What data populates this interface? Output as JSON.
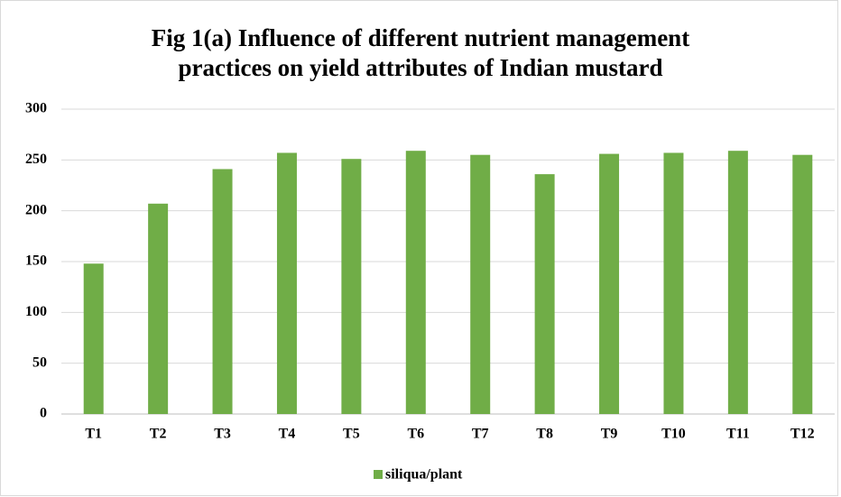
{
  "chart_data": {
    "type": "bar",
    "title": "Fig 1(a) Influence of different nutrient management practices on yield attributes of Indian mustard",
    "categories": [
      "T1",
      "T2",
      "T3",
      "T4",
      "T5",
      "T6",
      "T7",
      "T8",
      "T9",
      "T10",
      "T11",
      "T12"
    ],
    "series": [
      {
        "name": "siliqua/plant",
        "color": "#70ad47",
        "values": [
          148,
          207,
          241,
          257,
          251,
          259,
          255,
          236,
          256,
          257,
          259,
          255
        ]
      }
    ],
    "ylim": [
      0,
      300
    ],
    "yticks": [
      0,
      50,
      100,
      150,
      200,
      250,
      300
    ],
    "grid": true,
    "legend": "bottom"
  }
}
